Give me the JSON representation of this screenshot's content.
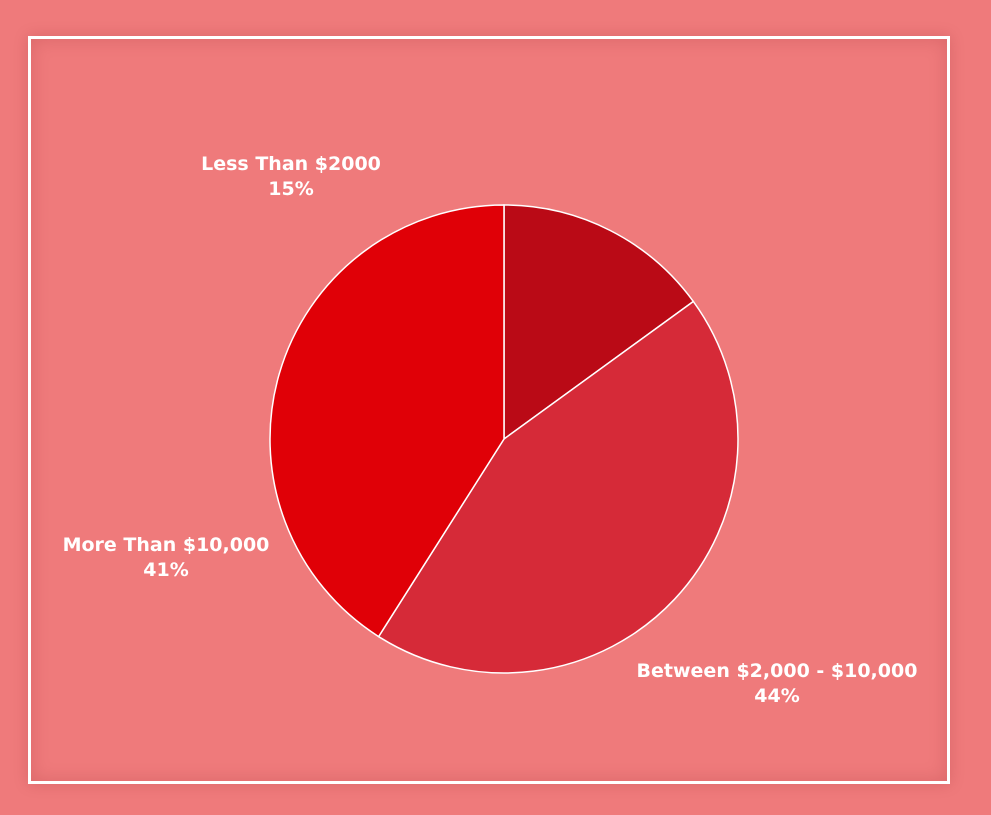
{
  "chart_data": {
    "type": "pie",
    "slices": [
      {
        "label": "Less Than $2000",
        "value": 15,
        "value_label": "15%",
        "color": "#ba0a16"
      },
      {
        "label": "Between $2,000 - $10,000",
        "value": 44,
        "value_label": "44%",
        "color": "#d62a38"
      },
      {
        "label": "More Than $10,000",
        "value": 41,
        "value_label": "41%",
        "color": "#e00007"
      }
    ],
    "start_angle": "top",
    "direction": "clockwise",
    "background_color": "#ef7a7b",
    "frame_color": "#ffffff"
  }
}
